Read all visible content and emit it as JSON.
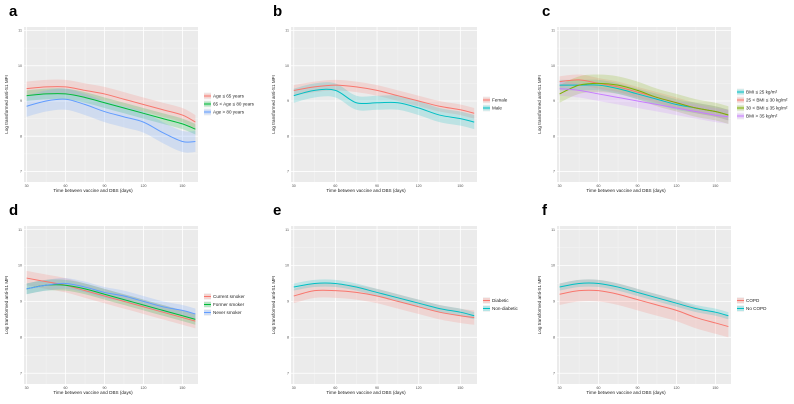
{
  "figure": {
    "shared_x_axis_title": "Time between vaccine and DBS (days)",
    "shared_y_axis_title": "Log transformed anti-S1 MFI"
  },
  "chart_data": [
    {
      "panel": "a",
      "type": "line",
      "title": "",
      "xlabel": "Time between vaccine and DBS (days)",
      "ylabel": "Log transformed anti-S1 MFI",
      "xlim": [
        28,
        162
      ],
      "ylim": [
        6.7,
        11.1
      ],
      "x_ticks": [
        30,
        60,
        90,
        120,
        150,
        180
      ],
      "y_ticks": [
        7,
        8,
        9,
        10,
        11
      ],
      "grid": true,
      "legend_position": "right",
      "x": [
        30,
        45,
        60,
        75,
        90,
        105,
        120,
        135,
        150,
        160
      ],
      "series": [
        {
          "name": "Age ≤ 65 years",
          "color": "#f8766d",
          "values": [
            9.35,
            9.4,
            9.4,
            9.3,
            9.2,
            9.05,
            8.9,
            8.75,
            8.6,
            8.4
          ],
          "ci_halfwidth": 0.2
        },
        {
          "name": "65 < Age ≤ 80 years",
          "color": "#00ba38",
          "values": [
            9.15,
            9.2,
            9.2,
            9.1,
            8.95,
            8.8,
            8.65,
            8.5,
            8.35,
            8.2
          ],
          "ci_halfwidth": 0.15
        },
        {
          "name": "Age > 80 years",
          "color": "#619cff",
          "values": [
            8.85,
            9.0,
            9.05,
            8.9,
            8.7,
            8.55,
            8.4,
            8.1,
            7.85,
            7.85
          ],
          "ci_halfwidth": 0.3
        }
      ]
    },
    {
      "panel": "b",
      "type": "line",
      "title": "",
      "xlabel": "Time between vaccine and DBS (days)",
      "ylabel": "Log transformed anti-S1 MFI",
      "xlim": [
        28,
        162
      ],
      "ylim": [
        6.7,
        11.1
      ],
      "x_ticks": [
        30,
        60,
        90,
        120,
        150,
        180
      ],
      "y_ticks": [
        7,
        8,
        9,
        10,
        11
      ],
      "grid": true,
      "legend_position": "right",
      "x": [
        30,
        45,
        60,
        75,
        90,
        105,
        120,
        135,
        150,
        160
      ],
      "series": [
        {
          "name": "Female",
          "color": "#f8766d",
          "values": [
            9.3,
            9.4,
            9.45,
            9.4,
            9.3,
            9.15,
            9.0,
            8.85,
            8.75,
            8.65
          ],
          "ci_halfwidth": 0.15
        },
        {
          "name": "Male",
          "color": "#00bfc4",
          "values": [
            9.15,
            9.3,
            9.3,
            8.95,
            8.95,
            8.95,
            8.8,
            8.6,
            8.5,
            8.4
          ],
          "ci_halfwidth": 0.2
        }
      ]
    },
    {
      "panel": "c",
      "type": "line",
      "title": "",
      "xlabel": "Time between vaccine and DBS (days)",
      "ylabel": "Log transformed anti-S1 MFI",
      "xlim": [
        28,
        162
      ],
      "ylim": [
        6.7,
        11.1
      ],
      "x_ticks": [
        30,
        60,
        90,
        120,
        150,
        180
      ],
      "y_ticks": [
        7,
        8,
        9,
        10,
        11
      ],
      "grid": true,
      "legend_position": "right",
      "x": [
        30,
        45,
        60,
        75,
        90,
        105,
        120,
        135,
        150,
        160
      ],
      "series": [
        {
          "name": "BMI ≤ 25 kg/m²",
          "color": "#00bfc4",
          "values": [
            9.45,
            9.45,
            9.45,
            9.35,
            9.2,
            9.05,
            8.9,
            8.8,
            8.7,
            8.6
          ],
          "ci_halfwidth": 0.15
        },
        {
          "name": "25 < BMI ≤ 30 kg/m²",
          "color": "#f8766d",
          "values": [
            9.55,
            9.6,
            9.5,
            9.4,
            9.25,
            9.1,
            8.95,
            8.8,
            8.7,
            8.6
          ],
          "ci_halfwidth": 0.15
        },
        {
          "name": "30 < BMI ≤ 35 kg/m²",
          "color": "#7cae00",
          "values": [
            9.2,
            9.45,
            9.5,
            9.45,
            9.3,
            9.1,
            8.95,
            8.8,
            8.7,
            8.6
          ],
          "ci_halfwidth": 0.25
        },
        {
          "name": "BMI > 35 kg/m²",
          "color": "#c77cff",
          "values": [
            9.35,
            9.3,
            9.2,
            9.1,
            9.0,
            8.9,
            8.8,
            8.7,
            8.6,
            8.55
          ],
          "ci_halfwidth": 0.2
        }
      ]
    },
    {
      "panel": "d",
      "type": "line",
      "title": "",
      "xlabel": "Time between vaccine and DBS (days)",
      "ylabel": "Log transformed anti-S1 MFI",
      "xlim": [
        28,
        162
      ],
      "ylim": [
        6.7,
        11.1
      ],
      "x_ticks": [
        30,
        60,
        90,
        120,
        150,
        180
      ],
      "y_ticks": [
        7,
        8,
        9,
        10,
        11
      ],
      "grid": true,
      "legend_position": "right",
      "x": [
        30,
        45,
        60,
        75,
        90,
        105,
        120,
        135,
        150,
        160
      ],
      "series": [
        {
          "name": "Current smoker",
          "color": "#f8766d",
          "values": [
            9.65,
            9.55,
            9.45,
            9.3,
            9.15,
            9.0,
            8.85,
            8.7,
            8.55,
            8.45
          ],
          "ci_halfwidth": 0.2
        },
        {
          "name": "Former smoker",
          "color": "#00ba38",
          "values": [
            9.35,
            9.45,
            9.45,
            9.35,
            9.2,
            9.05,
            8.9,
            8.75,
            8.6,
            8.5
          ],
          "ci_halfwidth": 0.15
        },
        {
          "name": "Never smoker",
          "color": "#619cff",
          "values": [
            9.35,
            9.45,
            9.5,
            9.4,
            9.25,
            9.15,
            9.0,
            8.85,
            8.75,
            8.65
          ],
          "ci_halfwidth": 0.15
        }
      ]
    },
    {
      "panel": "e",
      "type": "line",
      "title": "",
      "xlabel": "Time between vaccine and DBS (days)",
      "ylabel": "Log transformed anti-S1 MFI",
      "xlim": [
        28,
        162
      ],
      "ylim": [
        6.7,
        11.1
      ],
      "x_ticks": [
        30,
        60,
        90,
        120,
        150,
        180
      ],
      "y_ticks": [
        7,
        8,
        9,
        10,
        11
      ],
      "grid": true,
      "legend_position": "right",
      "x": [
        30,
        45,
        60,
        75,
        90,
        105,
        120,
        135,
        150,
        160
      ],
      "series": [
        {
          "name": "Diabetic",
          "color": "#f8766d",
          "values": [
            9.15,
            9.3,
            9.3,
            9.25,
            9.15,
            9.0,
            8.85,
            8.7,
            8.6,
            8.55
          ],
          "ci_halfwidth": 0.2
        },
        {
          "name": "Non-diabetic",
          "color": "#00bfc4",
          "values": [
            9.4,
            9.5,
            9.5,
            9.4,
            9.25,
            9.1,
            8.95,
            8.8,
            8.7,
            8.6
          ],
          "ci_halfwidth": 0.1
        }
      ]
    },
    {
      "panel": "f",
      "type": "line",
      "title": "",
      "xlabel": "Time between vaccine and DBS (days)",
      "ylabel": "Log transformed anti-S1 MFI",
      "xlim": [
        28,
        162
      ],
      "ylim": [
        6.7,
        11.1
      ],
      "x_ticks": [
        30,
        60,
        90,
        120,
        150,
        180
      ],
      "y_ticks": [
        7,
        8,
        9,
        10,
        11
      ],
      "grid": true,
      "legend_position": "right",
      "x": [
        30,
        45,
        60,
        75,
        90,
        105,
        120,
        135,
        150,
        160
      ],
      "series": [
        {
          "name": "COPD",
          "color": "#f8766d",
          "values": [
            9.2,
            9.3,
            9.3,
            9.2,
            9.05,
            8.9,
            8.75,
            8.55,
            8.4,
            8.3
          ],
          "ci_halfwidth": 0.3
        },
        {
          "name": "No COPD",
          "color": "#00bfc4",
          "values": [
            9.4,
            9.5,
            9.5,
            9.4,
            9.25,
            9.1,
            8.95,
            8.8,
            8.7,
            8.6
          ],
          "ci_halfwidth": 0.1
        }
      ]
    }
  ]
}
